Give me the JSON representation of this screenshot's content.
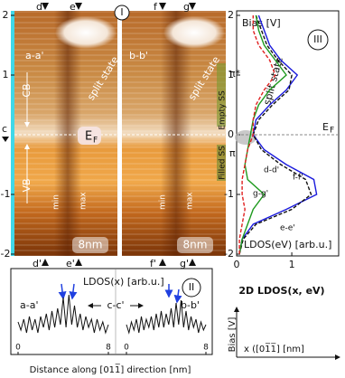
{
  "panel_I": {
    "label": "I",
    "title_left": "a-a'",
    "title_right": "b-b'",
    "top_markers": [
      "d",
      "e",
      "f",
      "g"
    ],
    "bottom_markers": [
      "d'",
      "e'",
      "f'",
      "g'"
    ],
    "cut_label": "c",
    "ylim": [
      -2,
      2
    ],
    "yticks": [
      2,
      1,
      -1,
      -2
    ],
    "labels": {
      "cb": "CB",
      "vb": "VB",
      "split_left": "split state",
      "split_right": "split state",
      "ef": "E",
      "ef_sub": "F",
      "min_left": "min",
      "max_left": "max",
      "min_right": "min",
      "max_right": "max",
      "scale_left": "8nm",
      "scale_right": "8nm",
      "pi_star": "π*",
      "pi": "π",
      "empty_ss": "Empty SS",
      "filled_ss": "Filled SS"
    }
  },
  "panel_III": {
    "type": "line",
    "label": "III",
    "y_title": "Bias [V]",
    "x_title": "LDOS(eV) [arb.u.]",
    "split": "split state",
    "ef": "E",
    "ef_sub": "F",
    "ylim": [
      -2,
      2
    ],
    "yticks": [
      2,
      1,
      0,
      -1,
      -2
    ],
    "xlim": [
      0,
      1.85
    ],
    "xticks": [
      0,
      1
    ],
    "bias": [
      -2,
      -1.75,
      -1.5,
      -1.25,
      -1,
      -0.75,
      -0.5,
      -0.25,
      0,
      0.25,
      0.5,
      0.75,
      1,
      1.25,
      1.5,
      1.75,
      2
    ],
    "series": [
      {
        "name": "d-d'",
        "color": "#1a1adc",
        "style": "solid",
        "values": [
          0.05,
          0.1,
          0.3,
          0.9,
          1.45,
          1.4,
          0.9,
          0.5,
          0.3,
          0.35,
          0.6,
          0.9,
          1.1,
          0.8,
          0.6,
          0.5,
          0.4
        ]
      },
      {
        "name": "f-f'",
        "color": "#111111",
        "style": "dashed",
        "values": [
          0.05,
          0.12,
          0.35,
          1.0,
          1.35,
          1.25,
          0.8,
          0.45,
          0.3,
          0.4,
          0.65,
          0.95,
          1.0,
          0.75,
          0.55,
          0.45,
          0.35
        ]
      },
      {
        "name": "g-g'",
        "color": "#1e9a1e",
        "style": "solid",
        "values": [
          0.05,
          0.1,
          0.2,
          0.3,
          0.5,
          0.2,
          0.15,
          0.2,
          0.25,
          0.3,
          0.4,
          0.6,
          0.9,
          0.7,
          0.5,
          0.4,
          0.35
        ]
      },
      {
        "name": "e-e'",
        "color": "#e02020",
        "style": "dashed",
        "values": [
          0.05,
          0.05,
          0.1,
          0.15,
          0.1,
          0.1,
          0.15,
          0.2,
          0.3,
          0.3,
          0.35,
          0.5,
          0.7,
          0.6,
          0.4,
          0.3,
          0.3
        ]
      }
    ]
  },
  "panel_II": {
    "type": "line",
    "label": "II",
    "title": "LDOS(x) [arb.u.]",
    "left_label": "a-a'",
    "mid_label": "c-c'",
    "right_label": "b-b'",
    "x_title": "Distance along [011̅] direction [nm]",
    "xlim": [
      0,
      8
    ],
    "xticks": [
      0,
      8
    ],
    "ylim": [
      0,
      1
    ],
    "x": [
      0,
      0.25,
      0.5,
      0.75,
      1,
      1.25,
      1.5,
      1.75,
      2,
      2.25,
      2.5,
      2.75,
      3,
      3.25,
      3.5,
      3.75,
      4,
      4.25,
      4.5,
      4.75,
      5,
      5.25,
      5.5,
      5.75,
      6,
      6.25,
      6.5,
      6.75,
      7,
      7.25,
      7.5,
      7.75,
      8
    ],
    "left": [
      0.4,
      0.25,
      0.45,
      0.2,
      0.5,
      0.25,
      0.45,
      0.2,
      0.5,
      0.3,
      0.55,
      0.25,
      0.6,
      0.3,
      0.65,
      0.35,
      0.85,
      0.3,
      0.9,
      0.35,
      0.7,
      0.3,
      0.55,
      0.25,
      0.5,
      0.3,
      0.45,
      0.2,
      0.45,
      0.25,
      0.4,
      0.2,
      0.35
    ],
    "right": [
      0.35,
      0.2,
      0.4,
      0.25,
      0.45,
      0.2,
      0.5,
      0.25,
      0.45,
      0.3,
      0.5,
      0.25,
      0.55,
      0.3,
      0.6,
      0.3,
      0.55,
      0.35,
      0.65,
      0.3,
      0.75,
      0.35,
      0.8,
      0.3,
      0.6,
      0.25,
      0.5,
      0.3,
      0.45,
      0.2,
      0.4,
      0.25,
      0.35
    ]
  },
  "key": {
    "title": "2D LDOS(x, eV)",
    "y_axis": "Bias [V]",
    "x_axis": "x ([01̅1̅] [nm]"
  }
}
